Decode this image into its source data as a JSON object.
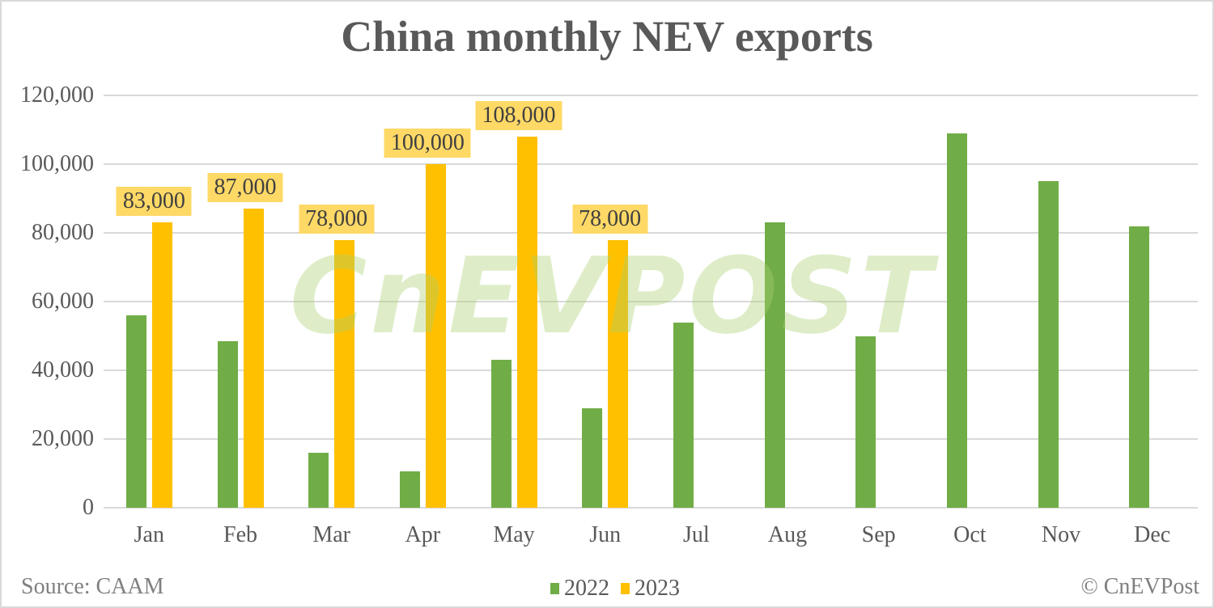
{
  "title": "China monthly NEV exports",
  "footer": {
    "source": "Source: CAAM",
    "copyright": "© CnEVPost"
  },
  "watermark": "CnEVPOST",
  "colors": {
    "series_2022": "#70ad47",
    "series_2023": "#ffc000",
    "label_bg": "#ffd966",
    "grid": "#d9d9d9",
    "text": "#595959"
  },
  "legend": [
    {
      "label": "2022",
      "color": "#70ad47"
    },
    {
      "label": "2023",
      "color": "#ffc000"
    }
  ],
  "y_ticks": [
    "0",
    "20,000",
    "40,000",
    "60,000",
    "80,000",
    "100,000",
    "120,000"
  ],
  "data_labels": [
    "83,000",
    "87,000",
    "78,000",
    "100,000",
    "108,000",
    "78,000"
  ],
  "chart_data": {
    "type": "bar",
    "title": "China monthly NEV exports",
    "xlabel": "",
    "ylabel": "",
    "ylim": [
      0,
      120000
    ],
    "grid": true,
    "legend_position": "bottom",
    "categories": [
      "Jan",
      "Feb",
      "Mar",
      "Apr",
      "May",
      "Jun",
      "Jul",
      "Aug",
      "Sep",
      "Oct",
      "Nov",
      "Dec"
    ],
    "series": [
      {
        "name": "2022",
        "values": [
          56000,
          48500,
          16000,
          10500,
          43000,
          29000,
          54000,
          83000,
          50000,
          109000,
          95000,
          82000
        ]
      },
      {
        "name": "2023",
        "values": [
          83000,
          87000,
          78000,
          100000,
          108000,
          78000,
          null,
          null,
          null,
          null,
          null,
          null
        ]
      }
    ],
    "annotations": [
      "Source: CAAM",
      "© CnEVPost"
    ]
  }
}
